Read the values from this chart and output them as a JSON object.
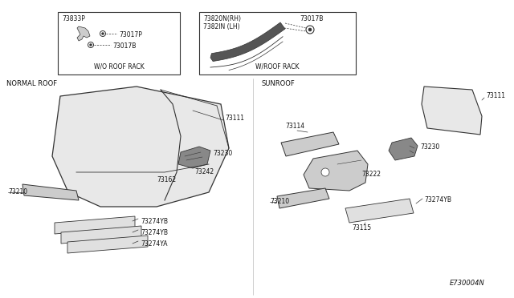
{
  "bg_color": "#ffffff",
  "line_color": "#333333",
  "text_color": "#111111",
  "title_diagram": "E730004N",
  "box1_label": "W/O ROOF RACK",
  "box2_label": "W/ROOF RACK",
  "section1_label": "NORMAL ROOF",
  "section2_label": "SUNROOF",
  "fig_width": 6.4,
  "fig_height": 3.72,
  "dpi": 100
}
